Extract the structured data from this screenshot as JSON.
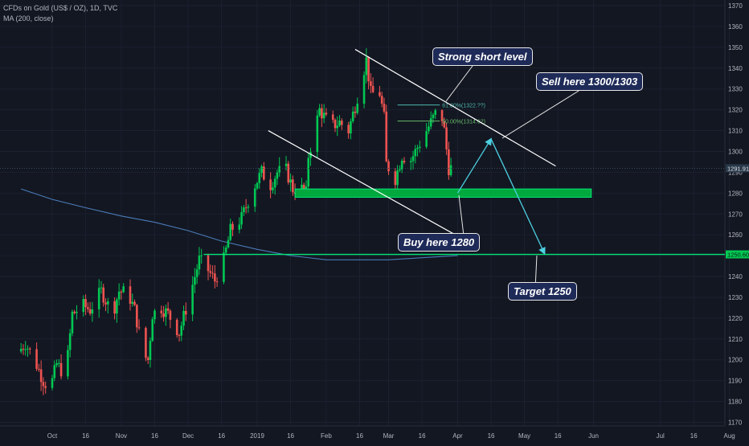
{
  "header": {
    "title": "CFDs on Gold (US$ / OZ), 1D, TVC",
    "indicator": "MA (200, close)"
  },
  "colors": {
    "background": "#131722",
    "bull": "#26a69a",
    "bull_bright": "#00c853",
    "bear": "#ef5350",
    "ma": "#4a7bb7",
    "support_zone": "#00a83d",
    "level_line": "#00e676",
    "fib": "#4db6ac",
    "arrow": "#4dd0e1",
    "channel": "#ffffff"
  },
  "chart_data": {
    "type": "candlestick",
    "symbol": "CFDs on Gold (US$ / OZ)",
    "timeframe": "1D",
    "source": "TVC",
    "y_axis": {
      "min": 1165,
      "max": 1372,
      "ticks": [
        1170,
        1180,
        1190,
        1200,
        1210,
        1220,
        1230,
        1240,
        1250,
        1260,
        1270,
        1280,
        1290,
        1300,
        1310,
        1320,
        1330,
        1340,
        1350,
        1360,
        1370
      ]
    },
    "x_axis_labels": [
      {
        "label": "Oct",
        "date": "2018-10-01"
      },
      {
        "label": "16",
        "date": "2018-10-16"
      },
      {
        "label": "Nov",
        "date": "2018-11-01"
      },
      {
        "label": "16",
        "date": "2018-11-16"
      },
      {
        "label": "Dec",
        "date": "2018-12-01"
      },
      {
        "label": "16",
        "date": "2018-12-16"
      },
      {
        "label": "2019",
        "date": "2019-01-01"
      },
      {
        "label": "16",
        "date": "2019-01-16"
      },
      {
        "label": "Feb",
        "date": "2019-02-01"
      },
      {
        "label": "16",
        "date": "2019-02-16"
      },
      {
        "label": "Mar",
        "date": "2019-03-01"
      },
      {
        "label": "16",
        "date": "2019-03-16"
      },
      {
        "label": "Apr",
        "date": "2019-04-01"
      },
      {
        "label": "16",
        "date": "2019-04-16"
      },
      {
        "label": "May",
        "date": "2019-05-01"
      },
      {
        "label": "16",
        "date": "2019-05-16"
      },
      {
        "label": "Jun",
        "date": "2019-06-01"
      },
      {
        "label": "Jul",
        "date": "2019-07-01"
      },
      {
        "label": "16",
        "date": "2019-07-16"
      },
      {
        "label": "Aug",
        "date": "2019-08-01"
      }
    ],
    "price_path": [
      {
        "date": "2018-09-17",
        "price": 1204
      },
      {
        "date": "2018-09-20",
        "price": 1208
      },
      {
        "date": "2018-09-24",
        "price": 1200
      },
      {
        "date": "2018-09-28",
        "price": 1190
      },
      {
        "date": "2018-10-01",
        "price": 1186
      },
      {
        "date": "2018-10-04",
        "price": 1198
      },
      {
        "date": "2018-10-08",
        "price": 1192
      },
      {
        "date": "2018-10-11",
        "price": 1222
      },
      {
        "date": "2018-10-16",
        "price": 1226
      },
      {
        "date": "2018-10-19",
        "price": 1224
      },
      {
        "date": "2018-10-24",
        "price": 1233
      },
      {
        "date": "2018-10-29",
        "price": 1222
      },
      {
        "date": "2018-11-01",
        "price": 1233
      },
      {
        "date": "2018-11-05",
        "price": 1232
      },
      {
        "date": "2018-11-08",
        "price": 1224
      },
      {
        "date": "2018-11-12",
        "price": 1202
      },
      {
        "date": "2018-11-14",
        "price": 1200
      },
      {
        "date": "2018-11-16",
        "price": 1222
      },
      {
        "date": "2018-11-20",
        "price": 1225
      },
      {
        "date": "2018-11-23",
        "price": 1222
      },
      {
        "date": "2018-11-28",
        "price": 1213
      },
      {
        "date": "2018-12-03",
        "price": 1232
      },
      {
        "date": "2018-12-07",
        "price": 1248
      },
      {
        "date": "2018-12-11",
        "price": 1243
      },
      {
        "date": "2018-12-14",
        "price": 1238
      },
      {
        "date": "2018-12-18",
        "price": 1248
      },
      {
        "date": "2018-12-21",
        "price": 1262
      },
      {
        "date": "2018-12-26",
        "price": 1268
      },
      {
        "date": "2018-12-31",
        "price": 1282
      },
      {
        "date": "2019-01-04",
        "price": 1290
      },
      {
        "date": "2019-01-08",
        "price": 1284
      },
      {
        "date": "2019-01-11",
        "price": 1290
      },
      {
        "date": "2019-01-15",
        "price": 1291
      },
      {
        "date": "2019-01-18",
        "price": 1282
      },
      {
        "date": "2019-01-22",
        "price": 1282
      },
      {
        "date": "2019-01-24",
        "price": 1280
      },
      {
        "date": "2019-01-25",
        "price": 1298
      },
      {
        "date": "2019-01-30",
        "price": 1320
      },
      {
        "date": "2019-02-04",
        "price": 1312
      },
      {
        "date": "2019-02-08",
        "price": 1314
      },
      {
        "date": "2019-02-12",
        "price": 1310
      },
      {
        "date": "2019-02-15",
        "price": 1322
      },
      {
        "date": "2019-02-20",
        "price": 1344
      },
      {
        "date": "2019-02-22",
        "price": 1328
      },
      {
        "date": "2019-02-26",
        "price": 1328
      },
      {
        "date": "2019-02-28",
        "price": 1316
      },
      {
        "date": "2019-03-01",
        "price": 1294
      },
      {
        "date": "2019-03-05",
        "price": 1287
      },
      {
        "date": "2019-03-08",
        "price": 1298
      },
      {
        "date": "2019-03-12",
        "price": 1296
      },
      {
        "date": "2019-03-15",
        "price": 1302
      },
      {
        "date": "2019-03-20",
        "price": 1312
      },
      {
        "date": "2019-03-25",
        "price": 1322
      },
      {
        "date": "2019-03-27",
        "price": 1310
      },
      {
        "date": "2019-03-29",
        "price": 1292
      }
    ],
    "moving_average": {
      "name": "MA (200, close)",
      "points": [
        {
          "date": "2018-09-17",
          "value": 1282
        },
        {
          "date": "2018-10-01",
          "value": 1277
        },
        {
          "date": "2018-10-16",
          "value": 1273
        },
        {
          "date": "2018-11-01",
          "value": 1269
        },
        {
          "date": "2018-11-16",
          "value": 1266
        },
        {
          "date": "2018-12-01",
          "value": 1262
        },
        {
          "date": "2018-12-16",
          "value": 1257
        },
        {
          "date": "2019-01-01",
          "value": 1253
        },
        {
          "date": "2019-01-16",
          "value": 1250
        },
        {
          "date": "2019-02-01",
          "value": 1248
        },
        {
          "date": "2019-02-16",
          "value": 1248
        },
        {
          "date": "2019-03-01",
          "value": 1248
        },
        {
          "date": "2019-03-16",
          "value": 1249
        },
        {
          "date": "2019-04-01",
          "value": 1250
        }
      ]
    },
    "last_price": {
      "value": 1291.91,
      "label": "1291.91"
    },
    "target_level": {
      "value": 1250.6,
      "label": "1250.60"
    },
    "fibonacci": [
      {
        "label": "61.80%(1322.??)",
        "value": 1322.3
      },
      {
        "label": "50.00%(1314.62)",
        "value": 1314.62
      }
    ],
    "support_zone": {
      "low": 1278,
      "high": 1282,
      "start": "2019-01-18",
      "end": "2019-05-31"
    },
    "channel_lines": [
      {
        "name": "upper",
        "from": {
          "date": "2019-02-14",
          "price": 1349
        },
        "to": {
          "date": "2019-05-15",
          "price": 1293
        }
      },
      {
        "name": "lower",
        "from": {
          "date": "2019-01-06",
          "price": 1310
        },
        "to": {
          "date": "2019-04-05",
          "price": 1257
        }
      }
    ],
    "horizontal_line": {
      "value": 1250.6,
      "start": "2018-12-08"
    },
    "projection_path": [
      {
        "date": "2019-04-01",
        "price": 1280
      },
      {
        "date": "2019-04-16",
        "price": 1306
      },
      {
        "date": "2019-05-10",
        "price": 1251
      }
    ],
    "annotations": [
      {
        "text": "Strong short level",
        "price": 1322,
        "date": "2019-03-26"
      },
      {
        "text": "Sell here 1300/1303",
        "price": 1305,
        "date": "2019-04-14"
      },
      {
        "text": "Buy here 1280",
        "price": 1280,
        "date": "2019-03-31"
      },
      {
        "text": "Target 1250",
        "price": 1251,
        "date": "2019-05-10"
      }
    ]
  }
}
